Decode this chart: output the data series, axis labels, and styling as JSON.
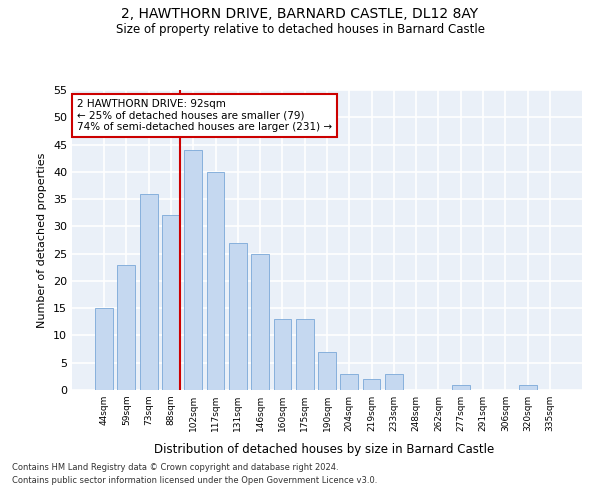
{
  "title": "2, HAWTHORN DRIVE, BARNARD CASTLE, DL12 8AY",
  "subtitle": "Size of property relative to detached houses in Barnard Castle",
  "xlabel": "Distribution of detached houses by size in Barnard Castle",
  "ylabel": "Number of detached properties",
  "categories": [
    "44sqm",
    "59sqm",
    "73sqm",
    "88sqm",
    "102sqm",
    "117sqm",
    "131sqm",
    "146sqm",
    "160sqm",
    "175sqm",
    "190sqm",
    "204sqm",
    "219sqm",
    "233sqm",
    "248sqm",
    "262sqm",
    "277sqm",
    "291sqm",
    "306sqm",
    "320sqm",
    "335sqm"
  ],
  "values": [
    15,
    23,
    36,
    32,
    44,
    40,
    27,
    25,
    13,
    13,
    7,
    3,
    2,
    3,
    0,
    0,
    1,
    0,
    0,
    1,
    0
  ],
  "bar_color": "#c5d8f0",
  "bar_edge_color": "#7aa8d8",
  "highlight_bar_index": 3,
  "highlight_line_color": "#cc0000",
  "ylim": [
    0,
    55
  ],
  "yticks": [
    0,
    5,
    10,
    15,
    20,
    25,
    30,
    35,
    40,
    45,
    50,
    55
  ],
  "annotation_line1": "2 HAWTHORN DRIVE: 92sqm",
  "annotation_line2": "← 25% of detached houses are smaller (79)",
  "annotation_line3": "74% of semi-detached houses are larger (231) →",
  "annotation_box_color": "#ffffff",
  "annotation_box_edge": "#cc0000",
  "background_color": "#ffffff",
  "plot_bg_color": "#eaf0f8",
  "grid_color": "#ffffff",
  "footer1": "Contains HM Land Registry data © Crown copyright and database right 2024.",
  "footer2": "Contains public sector information licensed under the Open Government Licence v3.0."
}
